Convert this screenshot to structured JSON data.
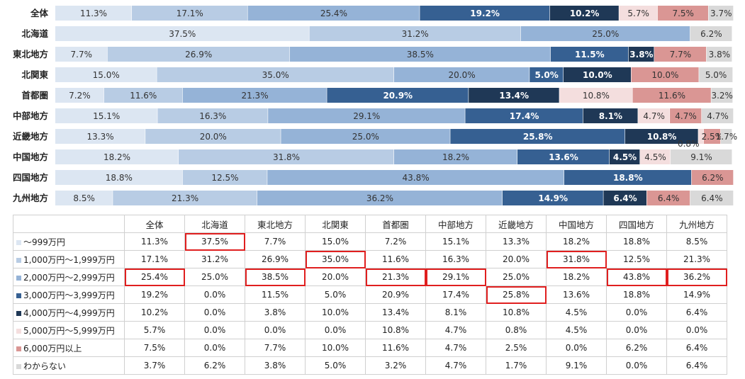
{
  "chart_data": {
    "type": "bar",
    "orientation": "horizontal-stacked-100",
    "categories": [
      "全体",
      "北海道",
      "東北地方",
      "北関東",
      "首都圏",
      "中部地方",
      "近畿地方",
      "中国地方",
      "四国地方",
      "九州地方"
    ],
    "series": [
      {
        "name": "〜999万円",
        "color": "#dce6f2",
        "values": [
          11.3,
          37.5,
          7.7,
          15.0,
          7.2,
          15.1,
          13.3,
          18.2,
          18.8,
          8.5
        ]
      },
      {
        "name": "1,000万円〜1,999万円",
        "color": "#b8cce4",
        "values": [
          17.1,
          31.2,
          26.9,
          35.0,
          11.6,
          16.3,
          20.0,
          31.8,
          12.5,
          21.3
        ]
      },
      {
        "name": "2,000万円〜2,999万円",
        "color": "#95b3d7",
        "values": [
          25.4,
          25.0,
          38.5,
          20.0,
          21.3,
          29.1,
          25.0,
          18.2,
          43.8,
          36.2
        ]
      },
      {
        "name": "3,000万円〜3,999万円",
        "color": "#366092",
        "values": [
          19.2,
          0.0,
          11.5,
          5.0,
          20.9,
          17.4,
          25.8,
          13.6,
          18.8,
          14.9
        ]
      },
      {
        "name": "4,000万円〜4,999万円",
        "color": "#1f3856",
        "values": [
          10.2,
          0.0,
          3.8,
          10.0,
          13.4,
          8.1,
          10.8,
          4.5,
          0.0,
          6.4
        ]
      },
      {
        "name": "5,000万円〜5,999万円",
        "color": "#f4dede",
        "values": [
          5.7,
          0.0,
          0.0,
          0.0,
          10.8,
          4.7,
          0.8,
          4.5,
          0.0,
          0.0
        ]
      },
      {
        "name": "6,000万円以上",
        "color": "#da9694",
        "values": [
          7.5,
          0.0,
          7.7,
          10.0,
          11.6,
          4.7,
          2.5,
          0.0,
          6.2,
          6.4
        ]
      },
      {
        "name": "わからない",
        "color": "#d9d9d9",
        "values": [
          3.7,
          6.2,
          3.8,
          5.0,
          3.2,
          4.7,
          1.7,
          9.1,
          0.0,
          6.4
        ]
      }
    ],
    "xlim": [
      0,
      100
    ],
    "value_suffix": "%"
  },
  "table": {
    "columns": [
      "全体",
      "北海道",
      "東北地方",
      "北関東",
      "首都圏",
      "中部地方",
      "近畿地方",
      "中国地方",
      "四国地方",
      "九州地方"
    ],
    "rows": [
      {
        "label": "〜999万円",
        "cells": [
          "11.3%",
          "37.5%",
          "7.7%",
          "15.0%",
          "7.2%",
          "15.1%",
          "13.3%",
          "18.2%",
          "18.8%",
          "8.5%"
        ],
        "highlight": [
          1
        ]
      },
      {
        "label": "1,000万円〜1,999万円",
        "cells": [
          "17.1%",
          "31.2%",
          "26.9%",
          "35.0%",
          "11.6%",
          "16.3%",
          "20.0%",
          "31.8%",
          "12.5%",
          "21.3%"
        ],
        "highlight": [
          3,
          7
        ]
      },
      {
        "label": "2,000万円〜2,999万円",
        "cells": [
          "25.4%",
          "25.0%",
          "38.5%",
          "20.0%",
          "21.3%",
          "29.1%",
          "25.0%",
          "18.2%",
          "43.8%",
          "36.2%"
        ],
        "highlight": [
          0,
          2,
          4,
          5,
          8,
          9
        ]
      },
      {
        "label": "3,000万円〜3,999万円",
        "cells": [
          "19.2%",
          "0.0%",
          "11.5%",
          "5.0%",
          "20.9%",
          "17.4%",
          "25.8%",
          "13.6%",
          "18.8%",
          "14.9%"
        ],
        "highlight": [
          6
        ]
      },
      {
        "label": "4,000万円〜4,999万円",
        "cells": [
          "10.2%",
          "0.0%",
          "3.8%",
          "10.0%",
          "13.4%",
          "8.1%",
          "10.8%",
          "4.5%",
          "0.0%",
          "6.4%"
        ],
        "highlight": []
      },
      {
        "label": "5,000万円〜5,999万円",
        "cells": [
          "5.7%",
          "0.0%",
          "0.0%",
          "0.0%",
          "10.8%",
          "4.7%",
          "0.8%",
          "4.5%",
          "0.0%",
          "0.0%"
        ],
        "highlight": []
      },
      {
        "label": "6,000万円以上",
        "cells": [
          "7.5%",
          "0.0%",
          "7.7%",
          "10.0%",
          "11.6%",
          "4.7%",
          "2.5%",
          "0.0%",
          "6.2%",
          "6.4%"
        ],
        "highlight": []
      },
      {
        "label": "わからない",
        "cells": [
          "3.7%",
          "6.2%",
          "3.8%",
          "5.0%",
          "3.2%",
          "4.7%",
          "1.7%",
          "9.1%",
          "0.0%",
          "6.4%"
        ],
        "highlight": []
      }
    ]
  },
  "colors": {
    "highlight_border": "#e01f1f",
    "light_text": "#333333",
    "dark_text": "#ffffff"
  }
}
